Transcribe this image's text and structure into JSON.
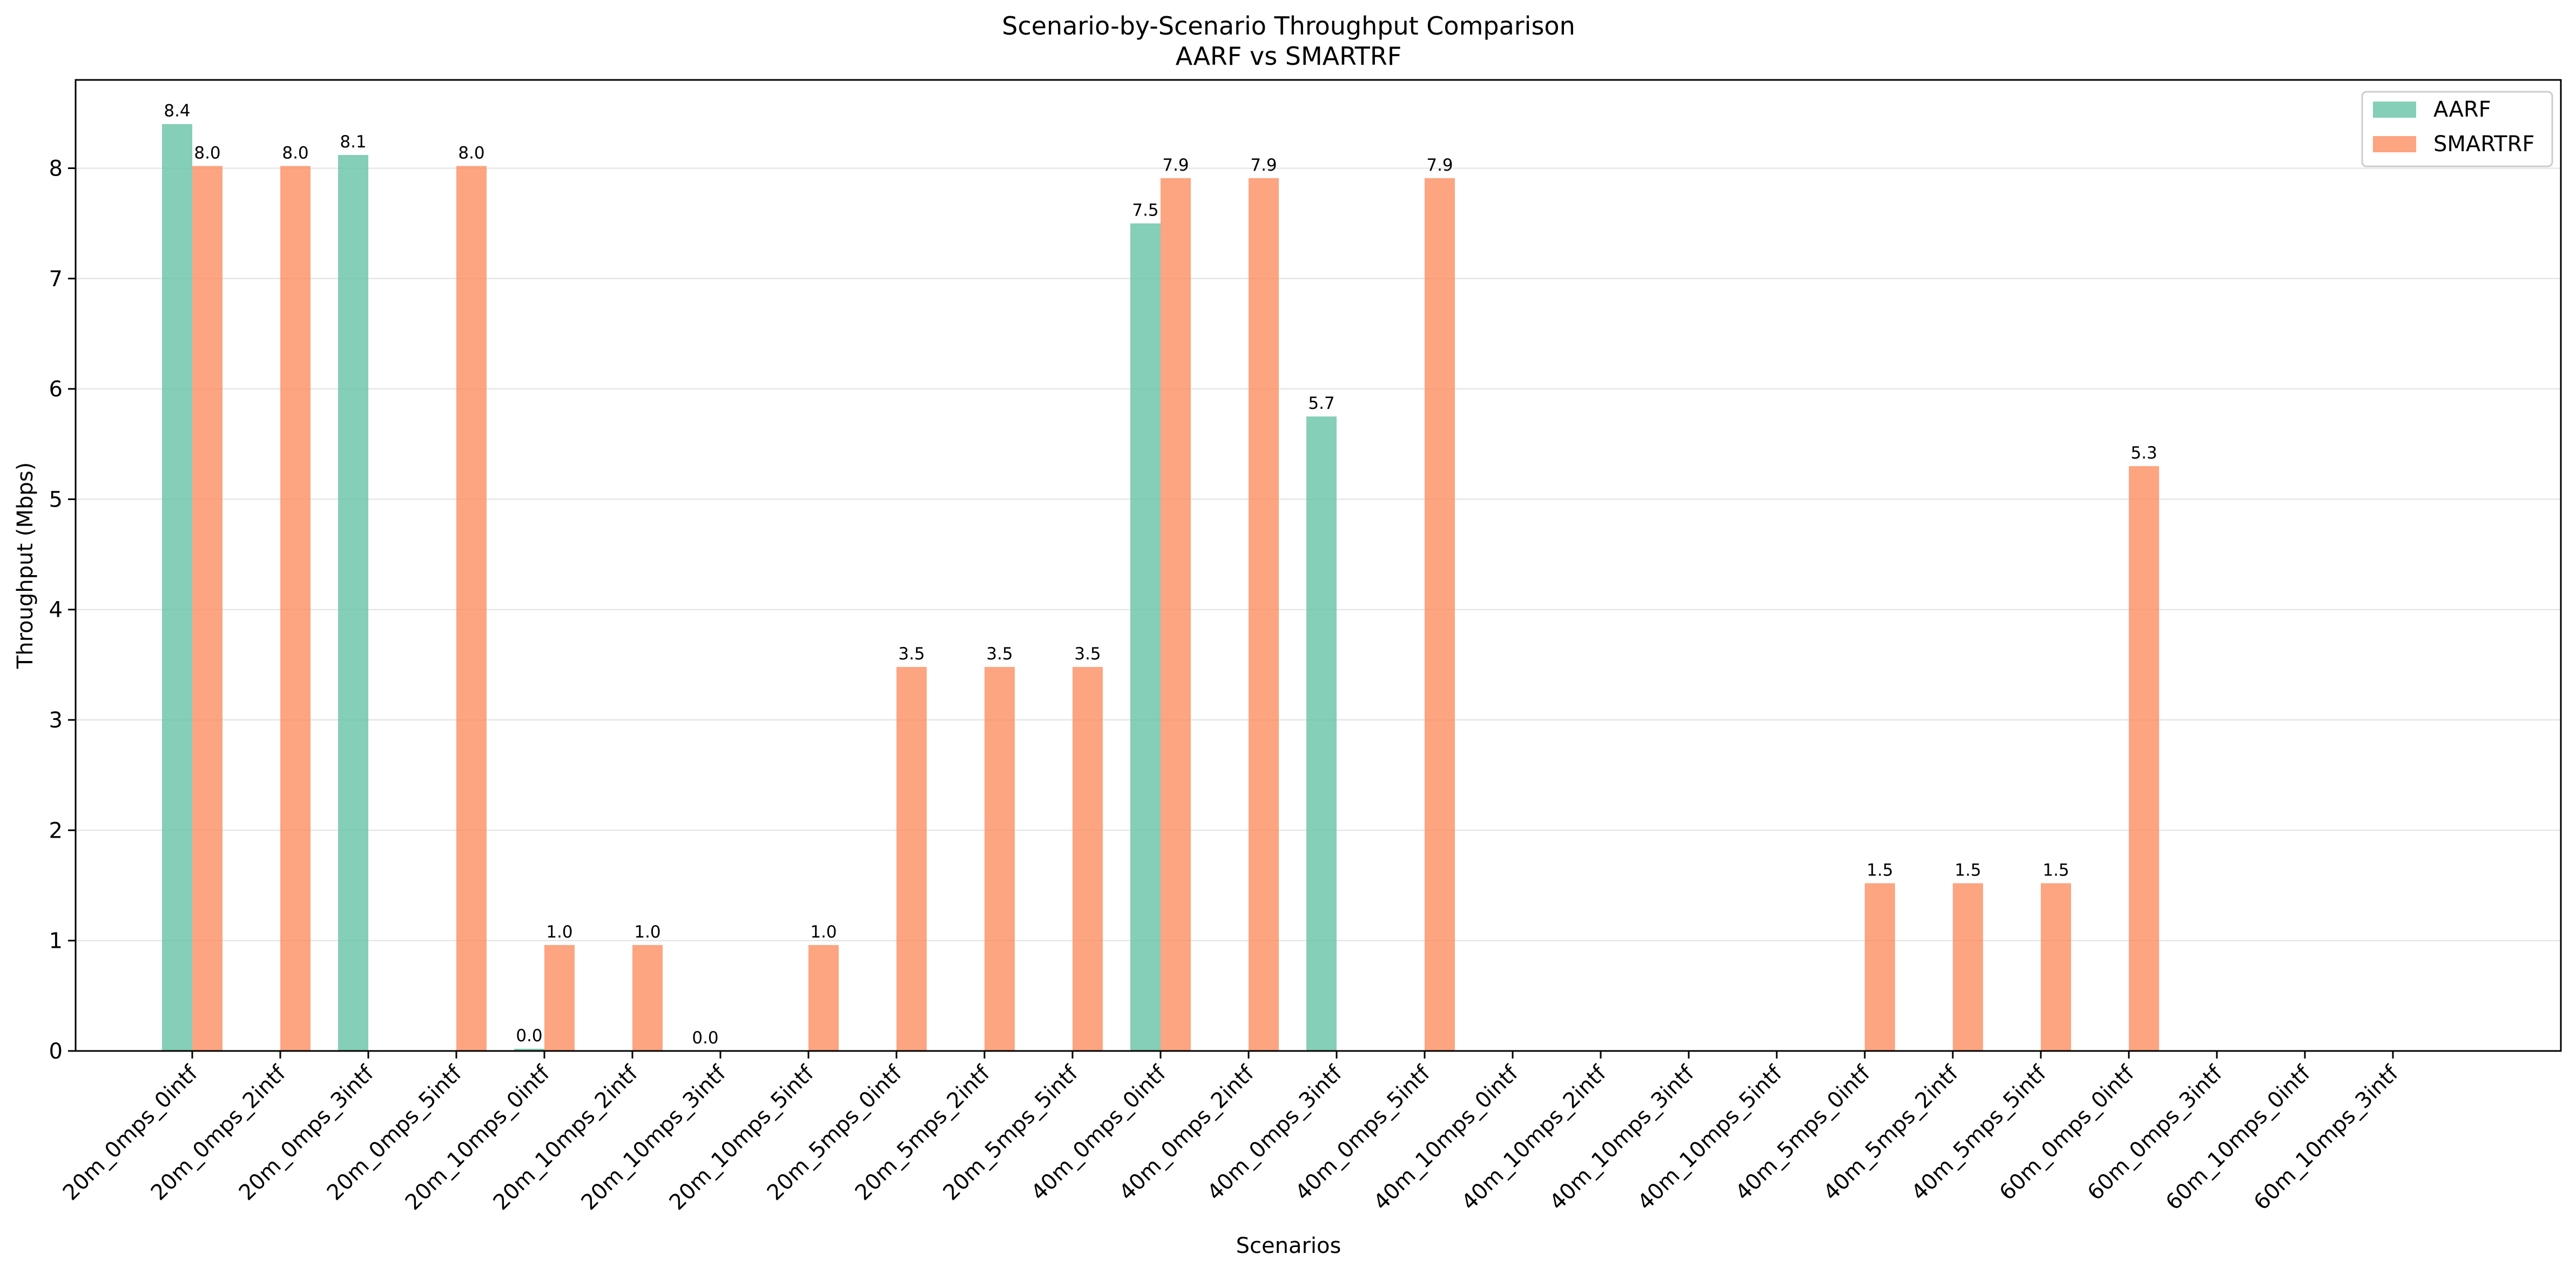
{
  "chart_data": {
    "type": "bar",
    "title": "Scenario-by-Scenario Throughput Comparison",
    "subtitle": "AARF vs SMARTRF",
    "xlabel": "Scenarios",
    "ylabel": "Throughput (Mbps)",
    "ylim": [
      0,
      8.8
    ],
    "yticks": [
      0,
      1,
      2,
      3,
      4,
      5,
      6,
      7,
      8
    ],
    "grid": "y",
    "legend_position": "top-right",
    "categories": [
      "20m_0mps_0intf",
      "20m_0mps_2intf",
      "20m_0mps_3intf",
      "20m_0mps_5intf",
      "20m_10mps_0intf",
      "20m_10mps_2intf",
      "20m_10mps_3intf",
      "20m_10mps_5intf",
      "20m_5mps_0intf",
      "20m_5mps_2intf",
      "20m_5mps_5intf",
      "40m_0mps_0intf",
      "40m_0mps_2intf",
      "40m_0mps_3intf",
      "40m_0mps_5intf",
      "40m_10mps_0intf",
      "40m_10mps_2intf",
      "40m_10mps_3intf",
      "40m_10mps_5intf",
      "40m_5mps_0intf",
      "40m_5mps_2intf",
      "40m_5mps_5intf",
      "60m_0mps_0intf",
      "60m_0mps_3intf",
      "60m_10mps_0intf",
      "60m_10mps_3intf"
    ],
    "series": [
      {
        "name": "AARF",
        "color": "#66c2a5",
        "values": [
          8.4,
          null,
          8.12,
          null,
          0.02,
          null,
          0.0,
          null,
          null,
          null,
          null,
          7.5,
          null,
          5.75,
          null,
          null,
          null,
          null,
          null,
          null,
          null,
          null,
          null,
          null,
          null,
          null
        ],
        "labels": [
          "8.4",
          null,
          "8.1",
          null,
          "0.0",
          null,
          "0.0",
          null,
          null,
          null,
          null,
          "7.5",
          null,
          "5.7",
          null,
          null,
          null,
          null,
          null,
          null,
          null,
          null,
          null,
          null,
          null,
          null
        ]
      },
      {
        "name": "SMARTRF",
        "color": "#fc8d62",
        "values": [
          8.02,
          8.02,
          null,
          8.02,
          0.96,
          0.96,
          null,
          0.96,
          3.48,
          3.48,
          3.48,
          7.91,
          7.91,
          null,
          7.91,
          null,
          null,
          null,
          null,
          1.52,
          1.52,
          1.52,
          5.3,
          null,
          null,
          null
        ],
        "labels": [
          "8.0",
          "8.0",
          null,
          "8.0",
          "1.0",
          "1.0",
          null,
          "1.0",
          "3.5",
          "3.5",
          "3.5",
          "7.9",
          "7.9",
          null,
          "7.9",
          null,
          null,
          null,
          null,
          "1.5",
          "1.5",
          "1.5",
          "5.3",
          null,
          null,
          null
        ]
      }
    ]
  }
}
